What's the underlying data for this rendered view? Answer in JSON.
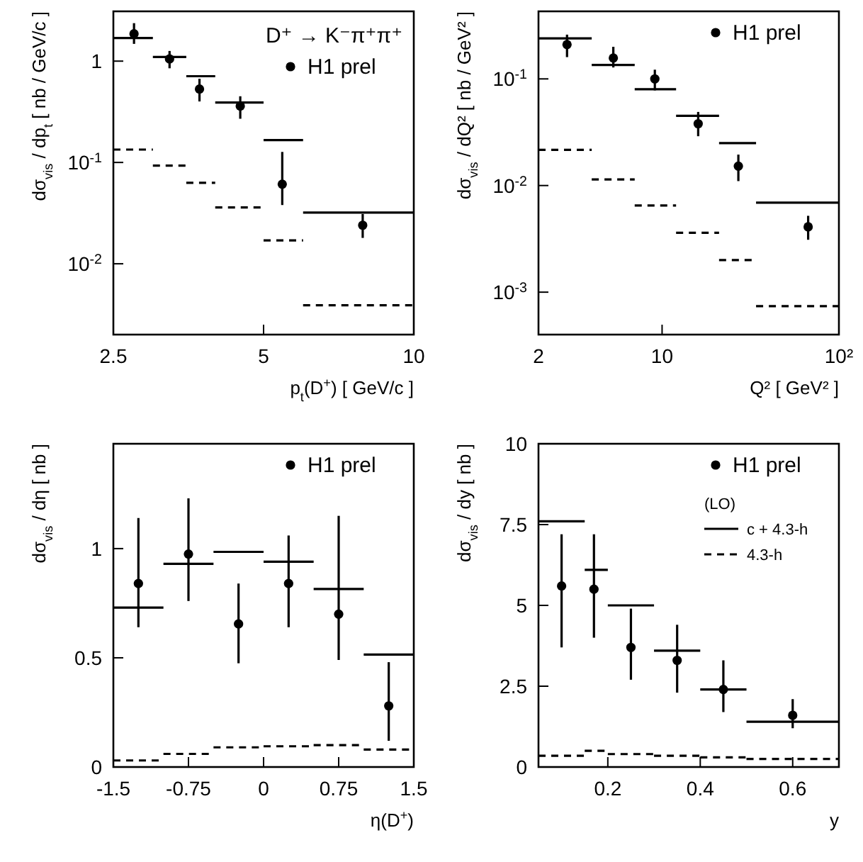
{
  "chart_data": [
    {
      "type": "scatter",
      "xlabel": "p$_{t}$(D$^{+}$)  [ GeV/c ]",
      "ylabel": "dσ$_{vis}$ / dp$_{t}$  [ nb / GeV/c ]",
      "log": "xy",
      "xlim": [
        2.5,
        10
      ],
      "xticks": [
        2.5,
        5,
        10
      ],
      "ylim": [
        0.002,
        3.1
      ],
      "yticks": [
        1,
        {
          "value": 0.1,
          "label": "10$^{-1}$"
        },
        {
          "value": 0.01,
          "label": "10$^{-2}$"
        }
      ],
      "grid": false,
      "legend": "top right",
      "annotations": [
        "D⁺ → K⁻π⁺π⁺"
      ],
      "series": [
        {
          "name": "H1 prel",
          "marker": "circle",
          "color": "#000000",
          "x": [
            2.75,
            3.24,
            3.72,
            4.49,
            5.45,
            7.9
          ],
          "values": [
            1.86,
            1.05,
            0.53,
            0.36,
            0.061,
            0.024
          ],
          "errors": [
            [
              1.48,
              2.37
            ],
            [
              0.85,
              1.26
            ],
            [
              0.4,
              0.67
            ],
            [
              0.27,
              0.45
            ],
            [
              0.038,
              0.127
            ],
            [
              0.018,
              0.031
            ]
          ]
        },
        {
          "type": "step",
          "color": "#000000",
          "line_style": "solid",
          "x": [
            2.5,
            3,
            3.5,
            4,
            5,
            6,
            10
          ],
          "values": [
            1.69,
            1.1,
            0.71,
            0.39,
            0.166,
            0.032,
            0.032
          ]
        },
        {
          "type": "step",
          "color": "#000000",
          "line_style": "dashed",
          "x": [
            2.5,
            3,
            3.5,
            4,
            5,
            6,
            10
          ],
          "values": [
            0.134,
            0.093,
            0.063,
            0.036,
            0.017,
            0.0039,
            0.0039
          ]
        }
      ]
    },
    {
      "type": "scatter",
      "xlabel": "Q² [ GeV² ]",
      "ylabel": "dσ$_{vis}$ / dQ² [ nb / GeV² ]",
      "log": "xy",
      "xlim": [
        2,
        100
      ],
      "xticks": [
        2,
        10,
        {
          "value": 100,
          "label": "10²"
        }
      ],
      "ylim": [
        0.0004,
        0.43
      ],
      "yticks": [
        {
          "value": 0.1,
          "label": "10$^{-1}$"
        },
        {
          "value": 0.01,
          "label": "10$^{-2}$"
        },
        {
          "value": 0.001,
          "label": "10$^{-3}$"
        }
      ],
      "grid": false,
      "legend": "top right",
      "series": [
        {
          "name": "H1 prel",
          "marker": "circle",
          "color": "#000000",
          "x": [
            2.9,
            5.3,
            9.1,
            16,
            27,
            67
          ],
          "values": [
            0.21,
            0.157,
            0.1,
            0.038,
            0.0152,
            0.0041
          ],
          "errors": [
            [
              0.16,
              0.26
            ],
            [
              0.128,
              0.2
            ],
            [
              0.078,
              0.122
            ],
            [
              0.029,
              0.049
            ],
            [
              0.011,
              0.0195
            ],
            [
              0.0031,
              0.0052
            ]
          ]
        },
        {
          "type": "step",
          "color": "#000000",
          "line_style": "solid",
          "x": [
            2,
            4,
            7,
            12,
            21,
            34,
            100
          ],
          "values": [
            0.24,
            0.135,
            0.08,
            0.045,
            0.025,
            0.0069,
            0.0069
          ]
        },
        {
          "type": "step",
          "color": "#000000",
          "line_style": "dashed",
          "x": [
            2,
            4,
            7,
            12,
            21,
            34,
            100
          ],
          "values": [
            0.0216,
            0.0114,
            0.0065,
            0.0036,
            0.002,
            0.00074,
            0.00074
          ]
        }
      ]
    },
    {
      "type": "scatter",
      "xlabel": "η(D$^{+}$)",
      "ylabel": "dσ$_{vis}$ / dη  [ nb ]",
      "xlim": [
        -1.5,
        1.5
      ],
      "xticks": [
        -1.5,
        -0.75,
        0,
        0.75,
        1.5
      ],
      "ylim": [
        0,
        1.48
      ],
      "yticks": [
        0,
        0.5,
        1
      ],
      "grid": false,
      "legend": "top right",
      "series": [
        {
          "name": "H1 prel",
          "marker": "circle",
          "color": "#000000",
          "x": [
            -1.25,
            -0.75,
            -0.25,
            0.25,
            0.75,
            1.25
          ],
          "values": [
            0.84,
            0.975,
            0.655,
            0.84,
            0.7,
            0.28
          ],
          "errors": [
            [
              0.64,
              1.14
            ],
            [
              0.76,
              1.23
            ],
            [
              0.475,
              0.84
            ],
            [
              0.64,
              1.06
            ],
            [
              0.49,
              1.15
            ],
            [
              0.12,
              0.48
            ]
          ]
        },
        {
          "type": "step",
          "color": "#000000",
          "line_style": "solid",
          "x": [
            -1.5,
            -1,
            -0.5,
            0,
            0.5,
            1,
            1.5
          ],
          "values": [
            0.73,
            0.93,
            0.985,
            0.94,
            0.815,
            0.515,
            0.515
          ]
        },
        {
          "type": "step",
          "color": "#000000",
          "line_style": "dashed",
          "x": [
            -1.5,
            -1,
            -0.5,
            0,
            0.5,
            1,
            1.5
          ],
          "values": [
            0.03,
            0.06,
            0.09,
            0.095,
            0.1,
            0.08,
            0.08
          ]
        }
      ]
    },
    {
      "type": "scatter",
      "xlabel": "y",
      "ylabel": "dσ$_{vis}$ / dy  [ nb ]",
      "xlim": [
        0.05,
        0.7
      ],
      "xticks": [
        0.2,
        0.4,
        0.6
      ],
      "ylim": [
        0,
        10
      ],
      "yticks": [
        0,
        2.5,
        5,
        7.5,
        10
      ],
      "grid": false,
      "legend": "top right",
      "legend_title": "(LO)",
      "series": [
        {
          "name": "H1 prel",
          "marker": "circle",
          "color": "#000000",
          "x": [
            0.1,
            0.17,
            0.25,
            0.35,
            0.45,
            0.6
          ],
          "values": [
            5.6,
            5.5,
            3.7,
            3.3,
            2.4,
            1.6
          ],
          "errors": [
            [
              3.7,
              7.2
            ],
            [
              4,
              7.2
            ],
            [
              2.7,
              4.9
            ],
            [
              2.3,
              4.4
            ],
            [
              1.7,
              3.3
            ],
            [
              1.2,
              2.1
            ]
          ]
        },
        {
          "type": "step",
          "name": "c + 4.3-h",
          "color": "#000000",
          "line_style": "solid",
          "x": [
            0.05,
            0.15,
            0.2,
            0.3,
            0.4,
            0.5,
            0.7
          ],
          "values": [
            7.6,
            6.1,
            5,
            3.6,
            2.4,
            1.4,
            1.4
          ]
        },
        {
          "type": "step",
          "name": "4.3-h",
          "color": "#000000",
          "line_style": "dashed",
          "x": [
            0.05,
            0.15,
            0.2,
            0.3,
            0.4,
            0.5,
            0.7
          ],
          "values": [
            0.35,
            0.5,
            0.4,
            0.35,
            0.3,
            0.25,
            0.25
          ]
        }
      ]
    }
  ]
}
